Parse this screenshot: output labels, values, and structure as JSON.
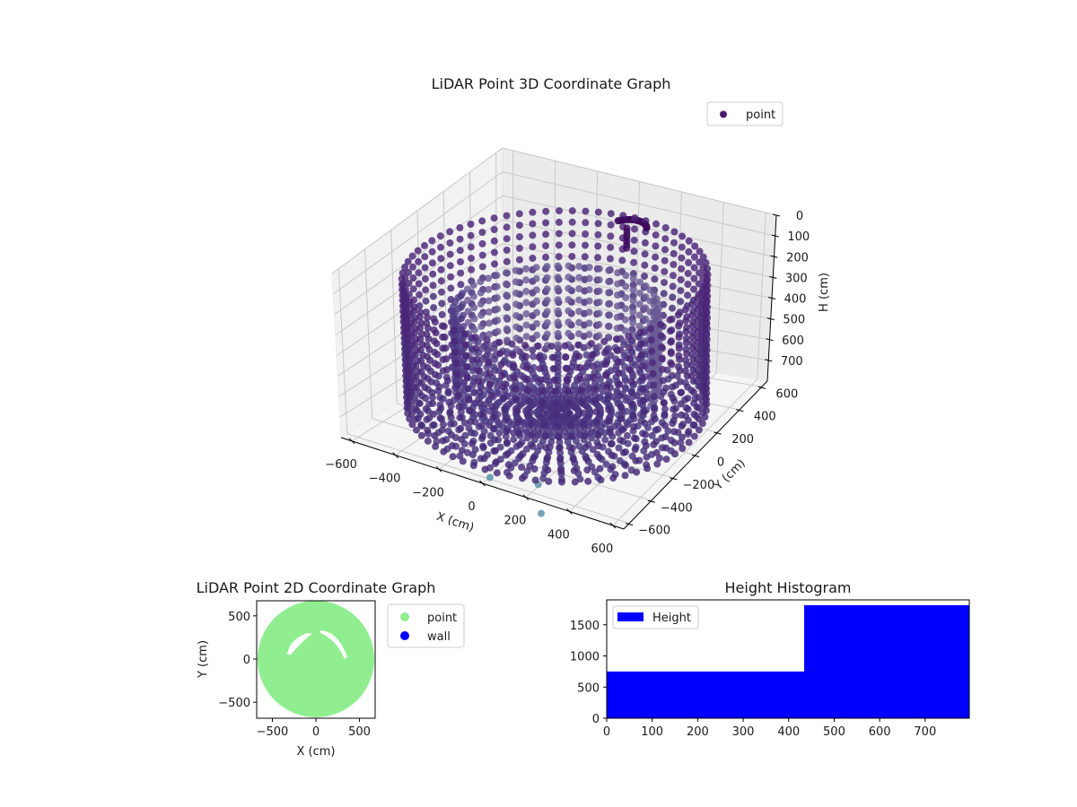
{
  "chart_data": [
    {
      "type": "scatter3d",
      "title": "LiDAR Point 3D Coordinate Graph",
      "xlabel": "X (cm)",
      "ylabel": "Y (cm)",
      "zlabel": "H (cm)",
      "x_ticks": [
        "−600",
        "−400",
        "−200",
        "0",
        "200",
        "400",
        "600"
      ],
      "y_ticks": [
        "−600",
        "−400",
        "−200",
        "0",
        "200",
        "400",
        "600"
      ],
      "z_ticks": [
        "0",
        "100",
        "200",
        "300",
        "400",
        "500",
        "600",
        "700"
      ],
      "xlim": [
        -650,
        650
      ],
      "ylim": [
        -650,
        650
      ],
      "zlim": [
        0,
        800
      ],
      "z_inverted": true,
      "legend": [
        {
          "label": "point",
          "color": "#4b1a6e"
        }
      ],
      "legend_position": "upper right",
      "grid": true,
      "colormap": "viridis (dark purple range)",
      "description": "Cylindrical room: radial floor points, circular walls from floor to ~770 cm height, and a ceiling ring at ~200 cm height radius ~620 cm; a dense cluster near center-back top (light fixture). Few outlier points near bottom front.",
      "structure": {
        "wall_radius": 620,
        "wall_heights": [
          150,
          200,
          250,
          300,
          350,
          400,
          450,
          500,
          550,
          600,
          650,
          700,
          750
        ],
        "inner_ring_radius": 420,
        "floor_height": 760,
        "outliers": [
          [
            20,
            -620,
            780
          ],
          [
            210,
            -560,
            780
          ],
          [
            330,
            -760,
            780
          ]
        ]
      }
    },
    {
      "type": "scatter",
      "title": "LiDAR Point 2D Coordinate Graph",
      "xlabel": "X (cm)",
      "ylabel": "Y (cm)",
      "x_ticks": [
        "−500",
        "0",
        "500"
      ],
      "y_ticks": [
        "−500",
        "0",
        "500"
      ],
      "xlim": [
        -680,
        680
      ],
      "ylim": [
        -680,
        680
      ],
      "legend": [
        {
          "label": "point",
          "color": "#90ee90"
        },
        {
          "label": "wall",
          "color": "#0000ff"
        }
      ],
      "legend_position": "outside right",
      "description": "Filled light-green disc of radius ~660 cm with two white arc-shaped gaps above center."
    },
    {
      "type": "histogram",
      "title": "Height Histogram",
      "xlabel": "",
      "ylabel": "",
      "bins": [
        [
          0,
          434
        ],
        [
          434,
          797
        ]
      ],
      "values": [
        750,
        1815
      ],
      "x_ticks": [
        "0",
        "100",
        "200",
        "300",
        "400",
        "500",
        "600",
        "700"
      ],
      "y_ticks": [
        "0",
        "500",
        "1000",
        "1500"
      ],
      "xlim": [
        0,
        797
      ],
      "ylim": [
        0,
        1900
      ],
      "legend": [
        {
          "label": "Height",
          "color": "#0000ff"
        }
      ],
      "legend_position": "upper left",
      "grid": false
    }
  ],
  "charts": {
    "c3d": {
      "title": "LiDAR Point 3D Coordinate Graph",
      "legend": "point",
      "xlabel": "X (cm)",
      "ylabel": "Y (cm)",
      "zlabel": "H (cm)"
    },
    "c2d": {
      "title": "LiDAR Point 2D Coordinate Graph",
      "legend_point": "point",
      "legend_wall": "wall",
      "xlabel": "X (cm)",
      "ylabel": "Y (cm)"
    },
    "hist": {
      "title": "Height Histogram",
      "legend": "Height"
    }
  }
}
